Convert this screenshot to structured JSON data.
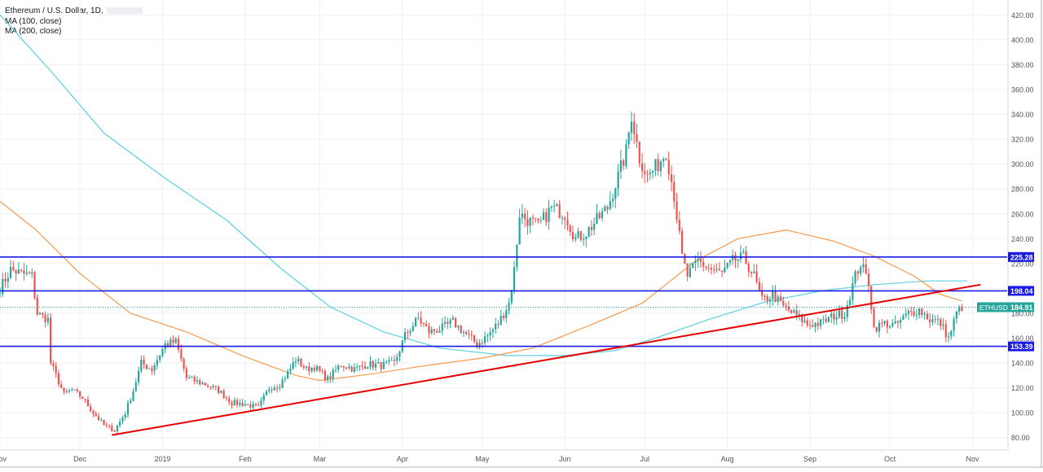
{
  "legend": {
    "title": "Ethereum / U.S. Dollar, 1D,",
    "ma100": "MA (100, close)",
    "ma200": "MA (200, close)"
  },
  "colors": {
    "background": "#ffffff",
    "grid": "#eef0f3",
    "up_candle": "#26a69a",
    "down_candle": "#ef5350",
    "ma100": "#f59a4b",
    "ma200": "#5ccfe0",
    "horizontal_level": "#1a1ae6",
    "trendline": "#e60000",
    "price_line": "#26a69a"
  },
  "chart_data": {
    "type": "candlestick",
    "symbol": "ETHUSD",
    "timeframe": "1D",
    "x_range": [
      "2018-11-01",
      "2019-11-14"
    ],
    "y_range": [
      70,
      432
    ],
    "x_ticks": [
      {
        "label": "Nov",
        "date": "2018-11-01"
      },
      {
        "label": "Dec",
        "date": "2018-12-01"
      },
      {
        "label": "2019",
        "date": "2019-01-01"
      },
      {
        "label": "Feb",
        "date": "2019-02-01"
      },
      {
        "label": "Mar",
        "date": "2019-03-01"
      },
      {
        "label": "Apr",
        "date": "2019-04-01"
      },
      {
        "label": "May",
        "date": "2019-05-01"
      },
      {
        "label": "Jun",
        "date": "2019-06-01"
      },
      {
        "label": "Jul",
        "date": "2019-07-01"
      },
      {
        "label": "Aug",
        "date": "2019-08-01"
      },
      {
        "label": "Sep",
        "date": "2019-09-01"
      },
      {
        "label": "Oct",
        "date": "2019-10-01"
      },
      {
        "label": "Nov",
        "date": "2019-11-01"
      }
    ],
    "y_ticks": [
      "80.00",
      "100.00",
      "120.00",
      "140.00",
      "160.00",
      "180.00",
      "200.00",
      "220.00",
      "240.00",
      "260.00",
      "280.00",
      "300.00",
      "320.00",
      "340.00",
      "360.00",
      "380.00",
      "400.00",
      "420.00"
    ],
    "close_path": [
      [
        "2018-11-01",
        200
      ],
      [
        "2018-11-05",
        215
      ],
      [
        "2018-11-09",
        212
      ],
      [
        "2018-11-13",
        210
      ],
      [
        "2018-11-15",
        180
      ],
      [
        "2018-11-19",
        175
      ],
      [
        "2018-11-20",
        140
      ],
      [
        "2018-11-25",
        115
      ],
      [
        "2018-11-28",
        118
      ],
      [
        "2018-12-02",
        112
      ],
      [
        "2018-12-06",
        100
      ],
      [
        "2018-12-10",
        90
      ],
      [
        "2018-12-14",
        86
      ],
      [
        "2018-12-18",
        100
      ],
      [
        "2018-12-21",
        118
      ],
      [
        "2018-12-24",
        140
      ],
      [
        "2018-12-28",
        135
      ],
      [
        "2019-01-02",
        155
      ],
      [
        "2019-01-06",
        157
      ],
      [
        "2019-01-10",
        128
      ],
      [
        "2019-01-14",
        125
      ],
      [
        "2019-01-18",
        122
      ],
      [
        "2019-01-22",
        118
      ],
      [
        "2019-01-27",
        108
      ],
      [
        "2019-02-01",
        107
      ],
      [
        "2019-02-06",
        104
      ],
      [
        "2019-02-10",
        120
      ],
      [
        "2019-02-14",
        123
      ],
      [
        "2019-02-17",
        132
      ],
      [
        "2019-02-20",
        143
      ],
      [
        "2019-02-24",
        135
      ],
      [
        "2019-02-27",
        137
      ],
      [
        "2019-03-04",
        127
      ],
      [
        "2019-03-09",
        139
      ],
      [
        "2019-03-14",
        135
      ],
      [
        "2019-03-19",
        139
      ],
      [
        "2019-03-24",
        138
      ],
      [
        "2019-03-29",
        140
      ],
      [
        "2019-04-02",
        162
      ],
      [
        "2019-04-07",
        176
      ],
      [
        "2019-04-11",
        165
      ],
      [
        "2019-04-16",
        168
      ],
      [
        "2019-04-20",
        173
      ],
      [
        "2019-04-25",
        163
      ],
      [
        "2019-04-29",
        155
      ],
      [
        "2019-05-03",
        162
      ],
      [
        "2019-05-07",
        172
      ],
      [
        "2019-05-11",
        188
      ],
      [
        "2019-05-13",
        215
      ],
      [
        "2019-05-15",
        260
      ],
      [
        "2019-05-18",
        255
      ],
      [
        "2019-05-22",
        250
      ],
      [
        "2019-05-27",
        265
      ],
      [
        "2019-06-01",
        260
      ],
      [
        "2019-06-05",
        240
      ],
      [
        "2019-06-09",
        245
      ],
      [
        "2019-06-13",
        255
      ],
      [
        "2019-06-17",
        265
      ],
      [
        "2019-06-21",
        290
      ],
      [
        "2019-06-24",
        310
      ],
      [
        "2019-06-26",
        340
      ],
      [
        "2019-06-29",
        305
      ],
      [
        "2019-07-02",
        290
      ],
      [
        "2019-07-06",
        300
      ],
      [
        "2019-07-09",
        310
      ],
      [
        "2019-07-12",
        275
      ],
      [
        "2019-07-15",
        225
      ],
      [
        "2019-07-17",
        210
      ],
      [
        "2019-07-21",
        222
      ],
      [
        "2019-07-26",
        215
      ],
      [
        "2019-07-30",
        212
      ],
      [
        "2019-08-03",
        222
      ],
      [
        "2019-08-07",
        225
      ],
      [
        "2019-08-11",
        210
      ],
      [
        "2019-08-14",
        190
      ],
      [
        "2019-08-18",
        195
      ],
      [
        "2019-08-22",
        185
      ],
      [
        "2019-08-27",
        178
      ],
      [
        "2019-08-31",
        171
      ],
      [
        "2019-09-05",
        172
      ],
      [
        "2019-09-10",
        178
      ],
      [
        "2019-09-14",
        180
      ],
      [
        "2019-09-18",
        210
      ],
      [
        "2019-09-20",
        220
      ],
      [
        "2019-09-23",
        205
      ],
      [
        "2019-09-25",
        168
      ],
      [
        "2019-09-29",
        172
      ],
      [
        "2019-10-03",
        170
      ],
      [
        "2019-10-08",
        180
      ],
      [
        "2019-10-12",
        183
      ],
      [
        "2019-10-16",
        175
      ],
      [
        "2019-10-20",
        172
      ],
      [
        "2019-10-23",
        160
      ],
      [
        "2019-10-26",
        180
      ],
      [
        "2019-10-28",
        185
      ]
    ],
    "ma100": [
      [
        "2018-11-01",
        270
      ],
      [
        "2018-11-14",
        248
      ],
      [
        "2018-12-01",
        212
      ],
      [
        "2018-12-20",
        180
      ],
      [
        "2019-01-10",
        165
      ],
      [
        "2019-02-01",
        145
      ],
      [
        "2019-02-20",
        130
      ],
      [
        "2019-03-01",
        126
      ],
      [
        "2019-03-20",
        131
      ],
      [
        "2019-04-10",
        138
      ],
      [
        "2019-05-01",
        144
      ],
      [
        "2019-05-20",
        152
      ],
      [
        "2019-06-10",
        170
      ],
      [
        "2019-06-30",
        188
      ],
      [
        "2019-07-10",
        205
      ],
      [
        "2019-07-20",
        222
      ],
      [
        "2019-08-05",
        240
      ],
      [
        "2019-08-23",
        247
      ],
      [
        "2019-09-10",
        238
      ],
      [
        "2019-09-25",
        226
      ],
      [
        "2019-10-10",
        210
      ],
      [
        "2019-10-20",
        195
      ],
      [
        "2019-10-28",
        190
      ]
    ],
    "ma200": [
      [
        "2018-11-01",
        420
      ],
      [
        "2018-11-20",
        375
      ],
      [
        "2018-12-10",
        325
      ],
      [
        "2019-01-01",
        290
      ],
      [
        "2019-01-25",
        255
      ],
      [
        "2019-02-15",
        215
      ],
      [
        "2019-03-05",
        185
      ],
      [
        "2019-03-25",
        165
      ],
      [
        "2019-04-15",
        152
      ],
      [
        "2019-05-10",
        146
      ],
      [
        "2019-06-01",
        146
      ],
      [
        "2019-06-20",
        150
      ],
      [
        "2019-07-05",
        160
      ],
      [
        "2019-07-25",
        175
      ],
      [
        "2019-08-15",
        189
      ],
      [
        "2019-09-05",
        198
      ],
      [
        "2019-09-25",
        203
      ],
      [
        "2019-10-15",
        206
      ],
      [
        "2019-10-30",
        206
      ]
    ],
    "horizontal_levels": [
      225.28,
      198.04,
      153.39
    ],
    "trendline": {
      "from": [
        "2018-12-13",
        82
      ],
      "to": [
        "2019-11-04",
        203
      ]
    },
    "last_price": 184.91,
    "price_labels": [
      "225.28",
      "198.04",
      "153.39",
      "184.91"
    ],
    "symbol_label": "ETHUSD"
  }
}
